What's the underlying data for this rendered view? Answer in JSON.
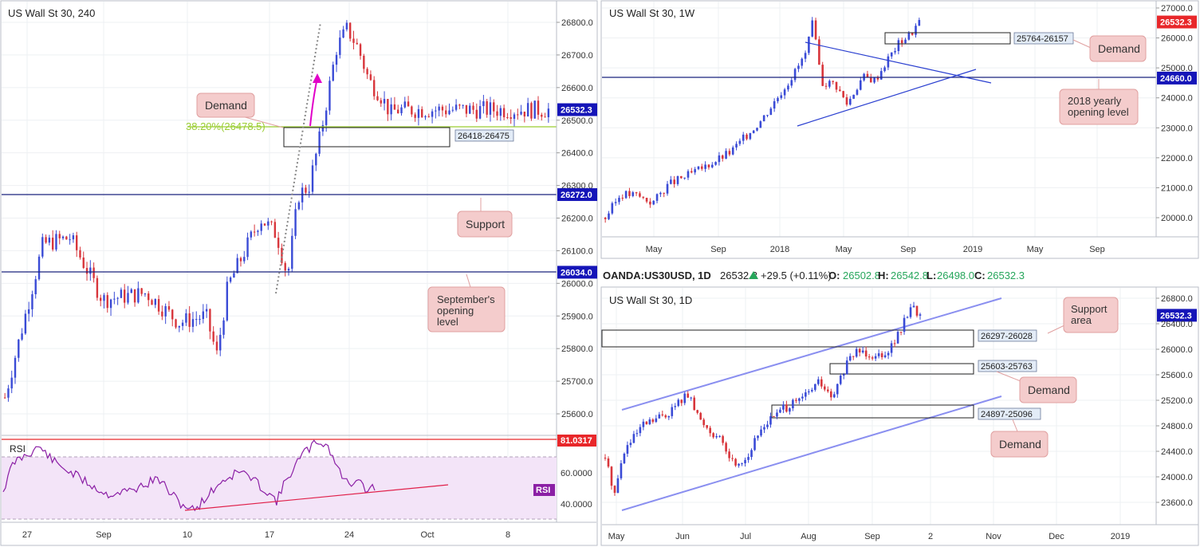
{
  "colors": {
    "bull": "#3a4bd6",
    "bear": "#d8363c",
    "grid": "#eef0f3",
    "axis_text": "#333333",
    "blue_line": "#1a237e",
    "pink_box": "#f4cccc",
    "pink_box_border": "#e0a0a0",
    "zone_label_bg": "#e3ecf7",
    "price_tag": "#1515b8",
    "red_tag": "#e8272a",
    "fib": "#9acd32",
    "rsi_line": "#8b1fa5",
    "rsi_band": "#f3e4f8",
    "trendline": "#8a8ff0"
  },
  "panels": {
    "h4": {
      "title": "US Wall St 30, 240",
      "price_labels": [
        "26800.0",
        "26700.0",
        "26600.0",
        "26532.3",
        "26500.0",
        "26400.0",
        "26300.0",
        "26272.0",
        "26200.0",
        "26100.0",
        "26034.0",
        "26000.0",
        "25900.0",
        "25800.0",
        "25700.0",
        "25600.0"
      ],
      "current_price": "26532.3",
      "support_price": "26272.0",
      "september_price": "26034.0",
      "zone_label": "26418-26475",
      "fib_label": "38.20%(26478.5)",
      "callouts": {
        "demand": "Demand",
        "support": "Support",
        "september": "September's\nopening\nlevel"
      },
      "x_labels": [
        "27",
        "Sep",
        "10",
        "17",
        "24",
        "Oct",
        "8"
      ],
      "rsi": {
        "label": "RSI",
        "value_tag": "81.0317",
        "levels": [
          "60.0000",
          "40.0000"
        ],
        "badge": "RSI"
      }
    },
    "weekly": {
      "title": "US Wall St 30, 1W",
      "price_labels": [
        "27000.0",
        "26532.3",
        "26000.0",
        "25000.0",
        "24660.0",
        "24000.0",
        "23000.0",
        "22000.0",
        "21000.0",
        "20000.0"
      ],
      "current_price": "26532.3",
      "yearly_price": "24660.0",
      "zone_label": "25764-26157",
      "callouts": {
        "demand": "Demand",
        "yearly": "2018 yearly\nopening level"
      },
      "x_labels": [
        "May",
        "Sep",
        "2018",
        "May",
        "Sep",
        "2019",
        "May",
        "Sep"
      ]
    },
    "daily": {
      "symbol_bar": {
        "symbol": "OANDA:US30USD, 1D",
        "price": "26532.3",
        "change": "+29.5 (+0.11%)",
        "o_label": "O:",
        "o": "26502.8",
        "h_label": "H:",
        "h": "26542.8",
        "l_label": "L:",
        "l": "26498.0",
        "c_label": "C:",
        "c": "26532.3"
      },
      "title": "US Wall St 30, 1D",
      "price_labels": [
        "26800.0",
        "26532.3",
        "26400.0",
        "26000.0",
        "25600.0",
        "25200.0",
        "24800.0",
        "24400.0",
        "24000.0",
        "23600.0"
      ],
      "current_price": "26532.3",
      "zones": [
        "26297-26028",
        "25603-25763",
        "24897-25096"
      ],
      "callouts": {
        "support": "Support\narea",
        "demand1": "Demand",
        "demand2": "Demand"
      },
      "x_labels": [
        "May",
        "Jun",
        "Jul",
        "Aug",
        "Sep",
        "2",
        "Nov",
        "Dec",
        "2019"
      ]
    }
  },
  "chart_data": [
    {
      "type": "candlestick",
      "title": "US Wall St 30, 240",
      "ylim": [
        25500,
        26860
      ],
      "x_ticks": [
        "27",
        "Sep",
        "10",
        "17",
        "24",
        "Oct",
        "8"
      ],
      "levels": [
        {
          "name": "Support",
          "value": 26272.0
        },
        {
          "name": "September's opening level",
          "value": 26034.0
        },
        {
          "name": "Demand",
          "low": 26418,
          "high": 26475
        },
        {
          "name": "38.20%",
          "value": 26478.5
        }
      ],
      "last_price": 26532.3
    },
    {
      "type": "candlestick",
      "title": "US Wall St 30, 1W",
      "ylim": [
        19500,
        27200
      ],
      "x_ticks": [
        "May",
        "Sep",
        "2018",
        "May",
        "Sep",
        "2019",
        "May",
        "Sep"
      ],
      "levels": [
        {
          "name": "2018 yearly opening level",
          "value": 24660.0
        },
        {
          "name": "Demand",
          "low": 25764,
          "high": 26157
        }
      ],
      "last_price": 26532.3
    },
    {
      "type": "candlestick",
      "title": "US Wall St 30, 1D",
      "ylim": [
        23300,
        26900
      ],
      "x_ticks": [
        "May",
        "Jun",
        "Jul",
        "Aug",
        "Sep",
        "2",
        "Nov",
        "Dec",
        "2019"
      ],
      "levels": [
        {
          "name": "Support area",
          "low": 26028,
          "high": 26297
        },
        {
          "name": "Demand",
          "low": 25603,
          "high": 25763
        },
        {
          "name": "Demand",
          "low": 24897,
          "high": 25096
        }
      ],
      "ohlc_last": {
        "open": 26502.8,
        "high": 26542.8,
        "low": 26498.0,
        "close": 26532.3,
        "change": 29.5,
        "change_pct": 0.11
      },
      "last_price": 26532.3
    }
  ]
}
